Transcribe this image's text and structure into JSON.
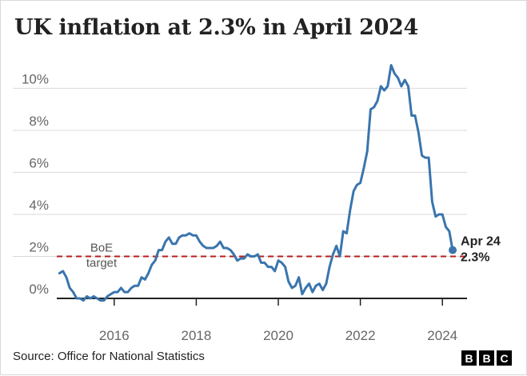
{
  "title": "UK inflation at 2.3% in April 2024",
  "source": "Source: Office for National Statistics",
  "logo": [
    "B",
    "B",
    "C"
  ],
  "colors": {
    "line": "#3a75ad",
    "target": "#b51f1f",
    "grid": "#d9d9d9",
    "baseline": "#222222"
  },
  "chart_data": {
    "type": "line",
    "title": "UK inflation at 2.3% in April 2024",
    "xlabel": "",
    "ylabel": "",
    "xlim": [
      2014.6,
      2024.6
    ],
    "ylim": [
      0,
      11.5
    ],
    "y_ticks": [
      0,
      2,
      4,
      6,
      8,
      10
    ],
    "y_tick_labels": [
      "0%",
      "2%",
      "4%",
      "6%",
      "8%",
      "10%"
    ],
    "x_ticks": [
      2016,
      2018,
      2020,
      2022,
      2024
    ],
    "x_tick_labels": [
      "2016",
      "2018",
      "2020",
      "2022",
      "2024"
    ],
    "grid": "horizontal",
    "reference_line": {
      "value": 2,
      "label": [
        "BoE",
        "target"
      ],
      "style": "dashed"
    },
    "end_label": {
      "line1": "Apr 24",
      "line2": "2.3%"
    },
    "series": [
      {
        "points": [
          [
            "2014-09",
            1.2
          ],
          [
            "2014-10",
            1.3
          ],
          [
            "2014-11",
            1.0
          ],
          [
            "2014-12",
            0.5
          ],
          [
            "2015-01",
            0.3
          ],
          [
            "2015-02",
            0.0
          ],
          [
            "2015-03",
            0.0
          ],
          [
            "2015-04",
            -0.1
          ],
          [
            "2015-05",
            0.1
          ],
          [
            "2015-06",
            0.0
          ],
          [
            "2015-07",
            0.1
          ],
          [
            "2015-08",
            0.0
          ],
          [
            "2015-09",
            -0.1
          ],
          [
            "2015-10",
            -0.1
          ],
          [
            "2015-11",
            0.1
          ],
          [
            "2015-12",
            0.2
          ],
          [
            "2016-01",
            0.3
          ],
          [
            "2016-02",
            0.3
          ],
          [
            "2016-03",
            0.5
          ],
          [
            "2016-04",
            0.3
          ],
          [
            "2016-05",
            0.3
          ],
          [
            "2016-06",
            0.5
          ],
          [
            "2016-07",
            0.6
          ],
          [
            "2016-08",
            0.6
          ],
          [
            "2016-09",
            1.0
          ],
          [
            "2016-10",
            0.9
          ],
          [
            "2016-11",
            1.2
          ],
          [
            "2016-12",
            1.6
          ],
          [
            "2017-01",
            1.8
          ],
          [
            "2017-02",
            2.3
          ],
          [
            "2017-03",
            2.3
          ],
          [
            "2017-04",
            2.7
          ],
          [
            "2017-05",
            2.9
          ],
          [
            "2017-06",
            2.6
          ],
          [
            "2017-07",
            2.6
          ],
          [
            "2017-08",
            2.9
          ],
          [
            "2017-09",
            3.0
          ],
          [
            "2017-10",
            3.0
          ],
          [
            "2017-11",
            3.1
          ],
          [
            "2017-12",
            3.0
          ],
          [
            "2018-01",
            3.0
          ],
          [
            "2018-02",
            2.7
          ],
          [
            "2018-03",
            2.5
          ],
          [
            "2018-04",
            2.4
          ],
          [
            "2018-05",
            2.4
          ],
          [
            "2018-06",
            2.4
          ],
          [
            "2018-07",
            2.5
          ],
          [
            "2018-08",
            2.7
          ],
          [
            "2018-09",
            2.4
          ],
          [
            "2018-10",
            2.4
          ],
          [
            "2018-11",
            2.3
          ],
          [
            "2018-12",
            2.1
          ],
          [
            "2019-01",
            1.8
          ],
          [
            "2019-02",
            1.9
          ],
          [
            "2019-03",
            1.9
          ],
          [
            "2019-04",
            2.1
          ],
          [
            "2019-05",
            2.0
          ],
          [
            "2019-06",
            2.0
          ],
          [
            "2019-07",
            2.1
          ],
          [
            "2019-08",
            1.7
          ],
          [
            "2019-09",
            1.7
          ],
          [
            "2019-10",
            1.5
          ],
          [
            "2019-11",
            1.5
          ],
          [
            "2019-12",
            1.3
          ],
          [
            "2020-01",
            1.8
          ],
          [
            "2020-02",
            1.7
          ],
          [
            "2020-03",
            1.5
          ],
          [
            "2020-04",
            0.8
          ],
          [
            "2020-05",
            0.5
          ],
          [
            "2020-06",
            0.6
          ],
          [
            "2020-07",
            1.0
          ],
          [
            "2020-08",
            0.2
          ],
          [
            "2020-09",
            0.5
          ],
          [
            "2020-10",
            0.7
          ],
          [
            "2020-11",
            0.3
          ],
          [
            "2020-12",
            0.6
          ],
          [
            "2021-01",
            0.7
          ],
          [
            "2021-02",
            0.4
          ],
          [
            "2021-03",
            0.7
          ],
          [
            "2021-04",
            1.5
          ],
          [
            "2021-05",
            2.1
          ],
          [
            "2021-06",
            2.5
          ],
          [
            "2021-07",
            2.0
          ],
          [
            "2021-08",
            3.2
          ],
          [
            "2021-09",
            3.1
          ],
          [
            "2021-10",
            4.2
          ],
          [
            "2021-11",
            5.1
          ],
          [
            "2021-12",
            5.4
          ],
          [
            "2022-01",
            5.5
          ],
          [
            "2022-02",
            6.2
          ],
          [
            "2022-03",
            7.0
          ],
          [
            "2022-04",
            9.0
          ],
          [
            "2022-05",
            9.1
          ],
          [
            "2022-06",
            9.4
          ],
          [
            "2022-07",
            10.1
          ],
          [
            "2022-08",
            9.9
          ],
          [
            "2022-09",
            10.1
          ],
          [
            "2022-10",
            11.1
          ],
          [
            "2022-11",
            10.7
          ],
          [
            "2022-12",
            10.5
          ],
          [
            "2023-01",
            10.1
          ],
          [
            "2023-02",
            10.4
          ],
          [
            "2023-03",
            10.1
          ],
          [
            "2023-04",
            8.7
          ],
          [
            "2023-05",
            8.7
          ],
          [
            "2023-06",
            7.9
          ],
          [
            "2023-07",
            6.8
          ],
          [
            "2023-08",
            6.7
          ],
          [
            "2023-09",
            6.7
          ],
          [
            "2023-10",
            4.6
          ],
          [
            "2023-11",
            3.9
          ],
          [
            "2023-12",
            4.0
          ],
          [
            "2024-01",
            4.0
          ],
          [
            "2024-02",
            3.4
          ],
          [
            "2024-03",
            3.2
          ],
          [
            "2024-04",
            2.3
          ]
        ]
      }
    ]
  }
}
